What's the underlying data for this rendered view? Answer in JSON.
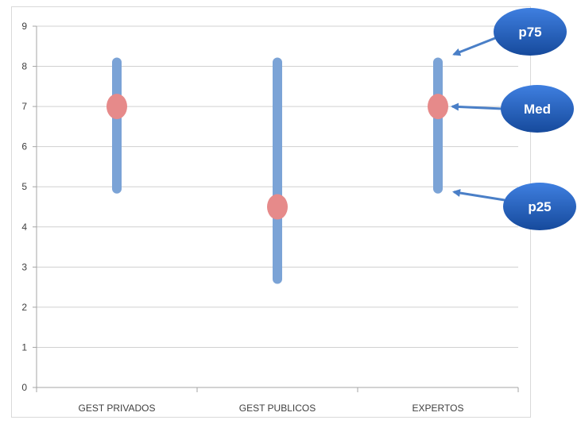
{
  "chart_data": {
    "type": "range",
    "categories": [
      "GEST PRIVADOS",
      "GEST PUBLICOS",
      "EXPERTOS"
    ],
    "series": [
      {
        "name": "p25",
        "values": [
          4.95,
          2.7,
          4.95
        ]
      },
      {
        "name": "Med",
        "values": [
          7.0,
          4.5,
          7.0
        ]
      },
      {
        "name": "p75",
        "values": [
          8.1,
          8.1,
          8.1
        ]
      }
    ],
    "ylim": [
      0,
      9
    ],
    "yticks": [
      "0",
      "1",
      "2",
      "3",
      "4",
      "5",
      "6",
      "7",
      "8",
      "9"
    ],
    "grid": true,
    "annotations": [
      {
        "text": "p75",
        "points_to": "p75",
        "category": "EXPERTOS"
      },
      {
        "text": "Med",
        "points_to": "Med",
        "category": "EXPERTOS"
      },
      {
        "text": "p25",
        "points_to": "p25",
        "category": "EXPERTOS"
      }
    ],
    "colors": {
      "range_bar": "#7ba3d6",
      "median_marker": "#e68a8a",
      "callout_fill": "#1f5fbf",
      "callout_text": "#ffffff",
      "arrow": "#4a7fc7",
      "grid": "#d0d0d0"
    }
  }
}
